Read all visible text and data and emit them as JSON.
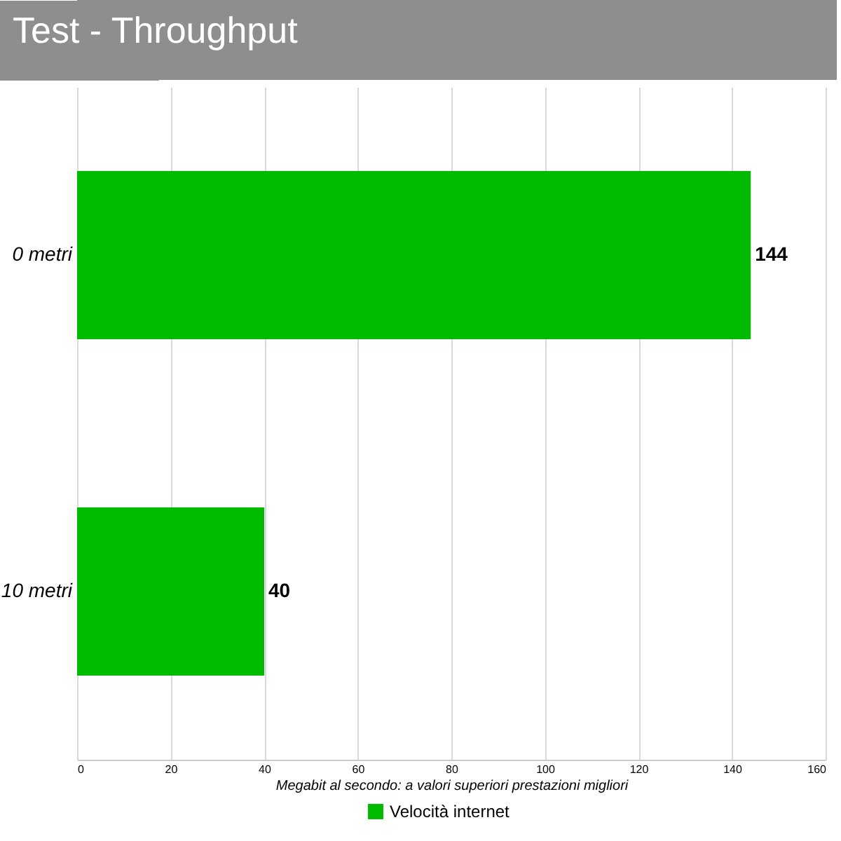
{
  "chart_data": {
    "type": "bar",
    "orientation": "horizontal",
    "title": "Test - Throughput",
    "xlabel": "Megabit al secondo: a valori superiori prestazioni migliori",
    "categories": [
      "0 metri",
      "10 metri"
    ],
    "series": [
      {
        "name": "Velocità internet",
        "color": "#00bb00",
        "values": [
          144,
          40
        ]
      }
    ],
    "xlim": [
      0,
      160
    ],
    "xticks": [
      0,
      20,
      40,
      60,
      80,
      100,
      120,
      140,
      160
    ],
    "data_labels": true,
    "grid": "x",
    "legend": "bottom"
  }
}
